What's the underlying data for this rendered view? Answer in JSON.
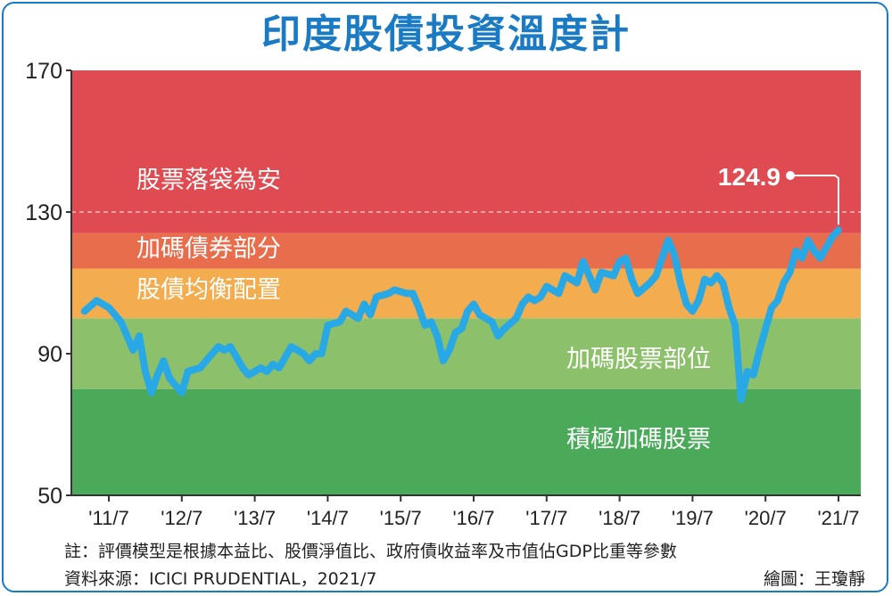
{
  "chart_data": {
    "type": "line",
    "title": "印度股債投資溫度計",
    "xlabel": "",
    "ylabel": "",
    "ylim": [
      50,
      170
    ],
    "yticks": [
      50,
      90,
      130,
      170
    ],
    "xticks": [
      "'11/7",
      "'12/7",
      "'13/7",
      "'14/7",
      "'15/7",
      "'16/7",
      "'17/7",
      "'18/7",
      "'19/7",
      "'20/7",
      "'21/7"
    ],
    "grid": "dashed horizontal at 130",
    "zones": [
      {
        "label": "股票落袋為安",
        "from": 124,
        "to": 170,
        "color": "#e04b52"
      },
      {
        "label": "加碼債券部分",
        "from": 114,
        "to": 124,
        "color": "#e86d4c"
      },
      {
        "label": "股債均衡配置",
        "from": 100,
        "to": 114,
        "color": "#f3ac4e"
      },
      {
        "label": "加碼股票部位",
        "from": 80,
        "to": 100,
        "color": "#8dc06a"
      },
      {
        "label": "積極加碼股票",
        "from": 50,
        "to": 80,
        "color": "#4aaa5a"
      }
    ],
    "series": [
      {
        "color": "#29a8e6",
        "points": [
          [
            "2011-03",
            102
          ],
          [
            "2011-05",
            105
          ],
          [
            "2011-07",
            103
          ],
          [
            "2011-09",
            99
          ],
          [
            "2011-10",
            95
          ],
          [
            "2011-11",
            91
          ],
          [
            "2011-12",
            95
          ],
          [
            "2012-01",
            85
          ],
          [
            "2012-02",
            79
          ],
          [
            "2012-03",
            84
          ],
          [
            "2012-04",
            88
          ],
          [
            "2012-05",
            83
          ],
          [
            "2012-06",
            81
          ],
          [
            "2012-07",
            79
          ],
          [
            "2012-08",
            85
          ],
          [
            "2012-10",
            86
          ],
          [
            "2012-12",
            90
          ],
          [
            "2013-01",
            92
          ],
          [
            "2013-02",
            91
          ],
          [
            "2013-03",
            92
          ],
          [
            "2013-05",
            86
          ],
          [
            "2013-06",
            84
          ],
          [
            "2013-08",
            86
          ],
          [
            "2013-09",
            85
          ],
          [
            "2013-10",
            87
          ],
          [
            "2013-11",
            86
          ],
          [
            "2014-01",
            92
          ],
          [
            "2014-03",
            90
          ],
          [
            "2014-04",
            88
          ],
          [
            "2014-05",
            90
          ],
          [
            "2014-06",
            90
          ],
          [
            "2014-07",
            98
          ],
          [
            "2014-09",
            99
          ],
          [
            "2014-10",
            102
          ],
          [
            "2014-12",
            100
          ],
          [
            "2015-01",
            104
          ],
          [
            "2015-02",
            101
          ],
          [
            "2015-03",
            106
          ],
          [
            "2015-05",
            107
          ],
          [
            "2015-06",
            108
          ],
          [
            "2015-08",
            107
          ],
          [
            "2015-09",
            107
          ],
          [
            "2015-10",
            103
          ],
          [
            "2015-11",
            98
          ],
          [
            "2015-12",
            99
          ],
          [
            "2016-01",
            95
          ],
          [
            "2016-02",
            88
          ],
          [
            "2016-03",
            91
          ],
          [
            "2016-04",
            96
          ],
          [
            "2016-05",
            97
          ],
          [
            "2016-06",
            102
          ],
          [
            "2016-07",
            104
          ],
          [
            "2016-08",
            101
          ],
          [
            "2016-10",
            99
          ],
          [
            "2016-11",
            95
          ],
          [
            "2016-12",
            97
          ],
          [
            "2017-02",
            100
          ],
          [
            "2017-03",
            104
          ],
          [
            "2017-04",
            106
          ],
          [
            "2017-05",
            105
          ],
          [
            "2017-06",
            106
          ],
          [
            "2017-07",
            109
          ],
          [
            "2017-08",
            108
          ],
          [
            "2017-09",
            107
          ],
          [
            "2017-10",
            112
          ],
          [
            "2017-12",
            110
          ],
          [
            "2018-01",
            116
          ],
          [
            "2018-02",
            112
          ],
          [
            "2018-03",
            108
          ],
          [
            "2018-04",
            113
          ],
          [
            "2018-06",
            112
          ],
          [
            "2018-07",
            116
          ],
          [
            "2018-08",
            117
          ],
          [
            "2018-09",
            111
          ],
          [
            "2018-10",
            107
          ],
          [
            "2018-12",
            110
          ],
          [
            "2019-01",
            112
          ],
          [
            "2019-02",
            117
          ],
          [
            "2019-03",
            122
          ],
          [
            "2019-04",
            118
          ],
          [
            "2019-05",
            110
          ],
          [
            "2019-06",
            104
          ],
          [
            "2019-07",
            102
          ],
          [
            "2019-08",
            105
          ],
          [
            "2019-09",
            111
          ],
          [
            "2019-10",
            110
          ],
          [
            "2019-11",
            112
          ],
          [
            "2019-12",
            110
          ],
          [
            "2020-01",
            103
          ],
          [
            "2020-02",
            98
          ],
          [
            "2020-03",
            77
          ],
          [
            "2020-04",
            85
          ],
          [
            "2020-05",
            84
          ],
          [
            "2020-06",
            91
          ],
          [
            "2020-07",
            97
          ],
          [
            "2020-08",
            103
          ],
          [
            "2020-09",
            105
          ],
          [
            "2020-10",
            110
          ],
          [
            "2020-11",
            113
          ],
          [
            "2020-12",
            119
          ],
          [
            "2021-01",
            117
          ],
          [
            "2021-02",
            122
          ],
          [
            "2021-03",
            119
          ],
          [
            "2021-04",
            117
          ],
          [
            "2021-05",
            120
          ],
          [
            "2021-06",
            123
          ],
          [
            "2021-07",
            124.9
          ]
        ]
      }
    ],
    "annotation": {
      "label": "124.9",
      "at": "2021-07",
      "value": 124.9
    }
  },
  "notes": {
    "footnote": "註：評價模型是根據本益比、股價淨值比、政府債收益率及市值佔GDP比重等參數",
    "source": "資料來源：ICICI PRUDENTIAL，2021/7",
    "credit": "繪圖：王瓊靜"
  }
}
